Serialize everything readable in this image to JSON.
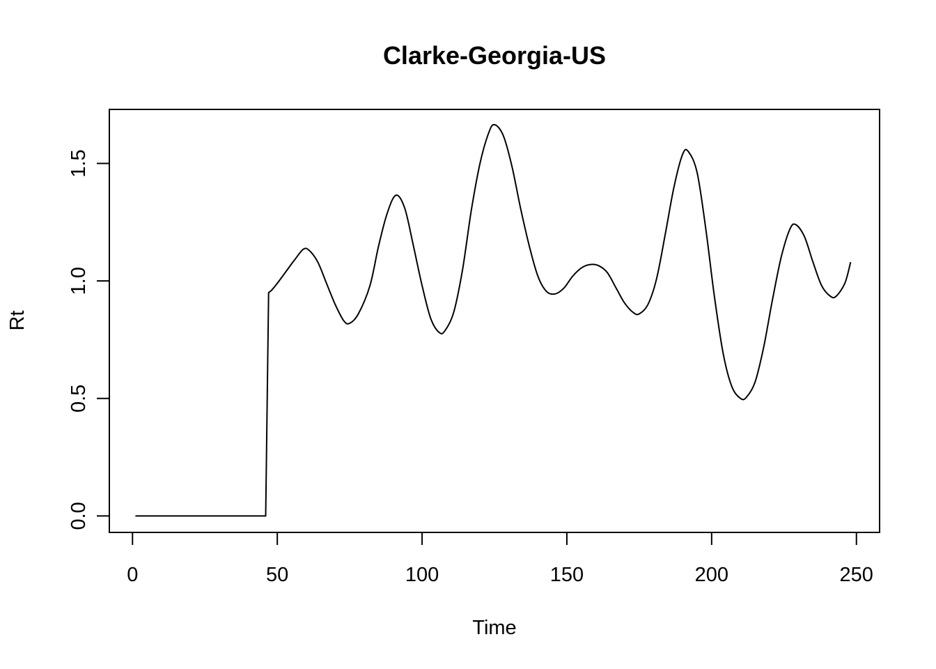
{
  "chart_data": {
    "type": "line",
    "title": "Clarke-Georgia-US",
    "xlabel": "Time",
    "ylabel": "Rt",
    "xlim": [
      -8,
      258
    ],
    "ylim": [
      -0.07,
      1.73
    ],
    "grid": false,
    "x_ticks": [
      0,
      50,
      100,
      150,
      200,
      250
    ],
    "y_ticks": [
      0.0,
      0.5,
      1.0,
      1.5
    ],
    "x_tick_labels": [
      "0",
      "50",
      "100",
      "150",
      "200",
      "250"
    ],
    "y_tick_labels": [
      "0.0",
      "0.5",
      "1.0",
      "1.5"
    ],
    "series": [
      {
        "color": "#000000",
        "points": [
          [
            1,
            0.0
          ],
          [
            46,
            0.0
          ],
          [
            47,
            0.95
          ],
          [
            48,
            0.96
          ],
          [
            50,
            0.99
          ],
          [
            53,
            1.04
          ],
          [
            56,
            1.09
          ],
          [
            59,
            1.135
          ],
          [
            61,
            1.13
          ],
          [
            64,
            1.08
          ],
          [
            67,
            0.99
          ],
          [
            70,
            0.9
          ],
          [
            73,
            0.83
          ],
          [
            75,
            0.82
          ],
          [
            78,
            0.86
          ],
          [
            82,
            0.98
          ],
          [
            85,
            1.15
          ],
          [
            88,
            1.29
          ],
          [
            91,
            1.365
          ],
          [
            94,
            1.31
          ],
          [
            97,
            1.15
          ],
          [
            100,
            0.98
          ],
          [
            103,
            0.84
          ],
          [
            106,
            0.78
          ],
          [
            108,
            0.79
          ],
          [
            111,
            0.87
          ],
          [
            114,
            1.05
          ],
          [
            117,
            1.3
          ],
          [
            120,
            1.5
          ],
          [
            123,
            1.63
          ],
          [
            125,
            1.665
          ],
          [
            128,
            1.62
          ],
          [
            131,
            1.49
          ],
          [
            134,
            1.31
          ],
          [
            137,
            1.15
          ],
          [
            140,
            1.02
          ],
          [
            143,
            0.955
          ],
          [
            146,
            0.945
          ],
          [
            149,
            0.97
          ],
          [
            152,
            1.02
          ],
          [
            155,
            1.055
          ],
          [
            158,
            1.07
          ],
          [
            161,
            1.065
          ],
          [
            164,
            1.035
          ],
          [
            167,
            0.97
          ],
          [
            170,
            0.905
          ],
          [
            173,
            0.865
          ],
          [
            175,
            0.86
          ],
          [
            178,
            0.9
          ],
          [
            181,
            1.01
          ],
          [
            184,
            1.2
          ],
          [
            187,
            1.4
          ],
          [
            190,
            1.54
          ],
          [
            192,
            1.55
          ],
          [
            195,
            1.46
          ],
          [
            198,
            1.22
          ],
          [
            201,
            0.93
          ],
          [
            204,
            0.69
          ],
          [
            207,
            0.55
          ],
          [
            210,
            0.5
          ],
          [
            212,
            0.505
          ],
          [
            215,
            0.57
          ],
          [
            218,
            0.72
          ],
          [
            221,
            0.92
          ],
          [
            224,
            1.1
          ],
          [
            227,
            1.22
          ],
          [
            229,
            1.24
          ],
          [
            232,
            1.19
          ],
          [
            235,
            1.08
          ],
          [
            238,
            0.98
          ],
          [
            241,
            0.935
          ],
          [
            243,
            0.935
          ],
          [
            246,
            0.99
          ],
          [
            248,
            1.08
          ]
        ]
      }
    ]
  }
}
